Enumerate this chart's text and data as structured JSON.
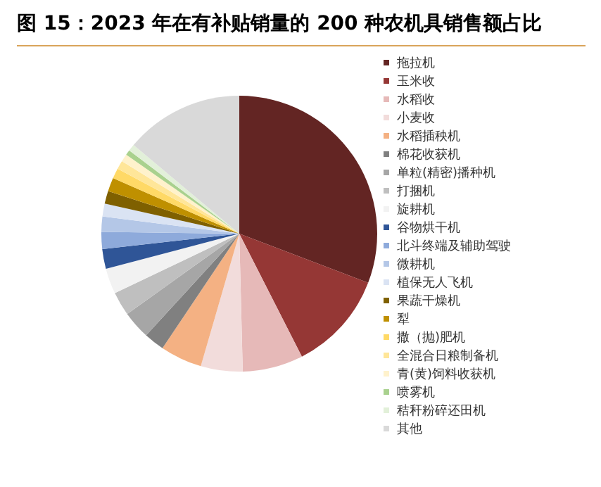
{
  "chart_data": {
    "type": "pie",
    "title": "图 15：2023 年在有补贴销量的 200 种农机具销售额占比",
    "categories": [
      "拖拉机",
      "玉米收",
      "水稻收",
      "小麦收",
      "水稻插秧机",
      "棉花收获机",
      "单粒(精密)播种机",
      "打捆机",
      "旋耕机",
      "谷物烘干机",
      "北斗终端及辅助驾驶",
      "微耕机",
      "植保无人飞机",
      "果蔬干燥机",
      "犁",
      "撒（抛)肥机",
      "全混合日粮制备机",
      "青(黄)饲料收获机",
      "喷雾机",
      "秸秆粉碎还田机",
      "其他"
    ],
    "values": [
      30.8,
      11.7,
      7.1,
      4.9,
      4.9,
      2.4,
      3.3,
      2.8,
      3.0,
      2.3,
      2.0,
      1.8,
      1.5,
      1.5,
      1.6,
      1.2,
      1.0,
      0.9,
      0.6,
      0.8,
      13.9
    ],
    "colors": [
      "#632523",
      "#953735",
      "#e6b9b8",
      "#f2dcdb",
      "#f4b183",
      "#808080",
      "#a6a6a6",
      "#bfbfbf",
      "#f2f2f2",
      "#2f5597",
      "#8eaadb",
      "#b4c7e7",
      "#dae3f3",
      "#7f6000",
      "#bf9000",
      "#ffd966",
      "#ffe699",
      "#fff2cc",
      "#a9d18e",
      "#e2f0d9",
      "#d9d9d9"
    ],
    "legend": "right"
  }
}
